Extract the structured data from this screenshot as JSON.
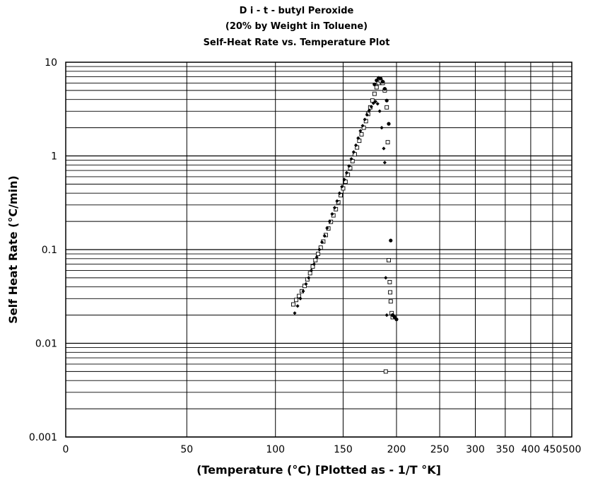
{
  "chart_data": {
    "type": "scatter",
    "title_lines": [
      "D i - t - butyl Peroxide",
      "(20% by Weight in Toluene)",
      "Self-Heat Rate vs. Temperature Plot"
    ],
    "xlabel": "(Temperature (°C) [Plotted as - 1/T °K]",
    "ylabel": "Self Heat Rate (°C/min)",
    "x_scale": "reciprocal (-1/T K)",
    "y_scale": "log",
    "xlim": [
      0,
      500
    ],
    "ylim": [
      0.001,
      10
    ],
    "x_ticks": [
      0,
      50,
      100,
      150,
      200,
      250,
      300,
      350,
      400,
      450,
      500
    ],
    "y_ticks": [
      0.001,
      0.01,
      0.1,
      1,
      10
    ],
    "y_tick_labels": [
      "0.001",
      "0.01",
      "0.1",
      "1",
      "10"
    ],
    "grid": true,
    "series": [
      {
        "marker": "open-square",
        "x": [
          112,
          114,
          116,
          118,
          120,
          122,
          124,
          126,
          128,
          130,
          132,
          134,
          136,
          138,
          140,
          142,
          144,
          146,
          148,
          150,
          152,
          154,
          156,
          158,
          160,
          162,
          164,
          166,
          168,
          170,
          172,
          174,
          176,
          178,
          180,
          182,
          184,
          186,
          188,
          190,
          191,
          192,
          193,
          193.5,
          194,
          195,
          196,
          189
        ],
        "y": [
          0.026,
          0.029,
          0.032,
          0.036,
          0.041,
          0.048,
          0.056,
          0.066,
          0.077,
          0.09,
          0.105,
          0.122,
          0.143,
          0.168,
          0.198,
          0.232,
          0.27,
          0.32,
          0.38,
          0.45,
          0.53,
          0.63,
          0.74,
          0.88,
          1.04,
          1.23,
          1.45,
          1.7,
          2.0,
          2.35,
          2.8,
          3.3,
          3.9,
          4.6,
          5.4,
          6.0,
          6.3,
          6.0,
          5.0,
          3.3,
          1.4,
          0.077,
          0.045,
          0.035,
          0.028,
          0.021,
          0.019,
          0.005
        ]
      },
      {
        "marker": "filled-diamond",
        "x": [
          113,
          115,
          117,
          119,
          121,
          123,
          125,
          127,
          129,
          131,
          133,
          135,
          137,
          139,
          141,
          143,
          145,
          147,
          149,
          151,
          153,
          155,
          157,
          159,
          161,
          163,
          165,
          167,
          169,
          171,
          173,
          175,
          177,
          179,
          181,
          183,
          185,
          187,
          188,
          189,
          190
        ],
        "y": [
          0.021,
          0.025,
          0.03,
          0.036,
          0.043,
          0.05,
          0.06,
          0.07,
          0.083,
          0.1,
          0.12,
          0.14,
          0.17,
          0.2,
          0.24,
          0.28,
          0.33,
          0.4,
          0.47,
          0.56,
          0.66,
          0.78,
          0.93,
          1.1,
          1.3,
          1.55,
          1.85,
          2.1,
          2.45,
          2.75,
          3.05,
          3.35,
          3.65,
          3.8,
          3.6,
          3.0,
          2.0,
          1.2,
          0.85,
          0.05,
          0.02
        ]
      },
      {
        "marker": "filled-circle",
        "x": [
          178,
          180,
          182,
          184,
          186,
          188,
          190,
          192,
          194,
          196,
          198,
          200
        ],
        "y": [
          5.8,
          6.4,
          6.8,
          6.7,
          6.2,
          5.2,
          3.9,
          2.2,
          0.125,
          0.02,
          0.019,
          0.018
        ]
      }
    ]
  }
}
